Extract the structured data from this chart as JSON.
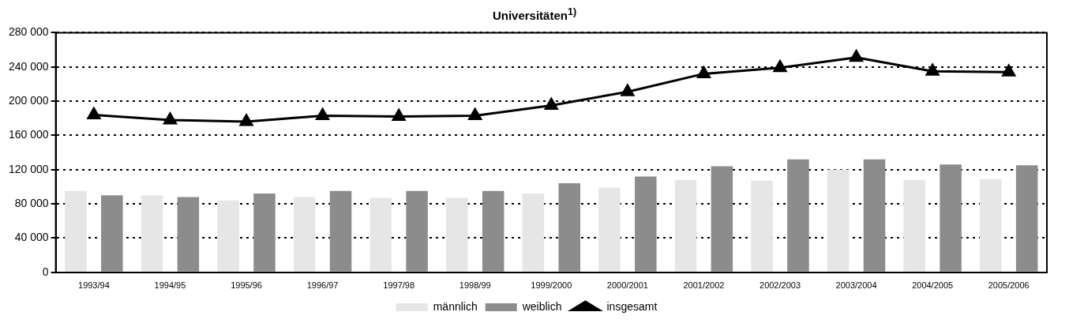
{
  "chart_data": {
    "type": "bar",
    "title": "Universitäten$^{1)}$",
    "categories": [
      "1993/94",
      "1994/95",
      "1995/96",
      "1996/97",
      "1997/98",
      "1998/99",
      "1999/2000",
      "2000/2001",
      "2001/2002",
      "2002/2003",
      "2003/2004",
      "2004/2005",
      "2005/2006"
    ],
    "series": [
      {
        "name": "männlich",
        "color": "#e6e6e6",
        "values": [
          95000,
          90000,
          84000,
          88000,
          87000,
          87000,
          92000,
          99000,
          108000,
          107000,
          120000,
          108000,
          109000
        ]
      },
      {
        "name": "weiblich",
        "color": "#8c8c8c",
        "values": [
          90000,
          88000,
          92000,
          95000,
          95000,
          95000,
          104000,
          112000,
          124000,
          132000,
          132000,
          126000,
          125000
        ]
      },
      {
        "name": "insgesamt",
        "type": "line",
        "color": "#000000",
        "marker": "triangle",
        "line_style": "solid",
        "values": [
          184000,
          178000,
          176000,
          183000,
          182000,
          183000,
          195000,
          211000,
          232000,
          239000,
          251000,
          235000,
          234000
        ]
      }
    ],
    "ylim": [
      0,
      280000
    ],
    "yticks": [
      0,
      {
        "value": 40000,
        "label": "40 000"
      },
      {
        "value": 80000,
        "label": "80 000"
      },
      {
        "value": 120000,
        "label": "120 000"
      },
      {
        "value": 160000,
        "label": "160 000"
      },
      {
        "value": 200000,
        "label": "200 000"
      },
      {
        "value": 240000,
        "label": "240 000"
      },
      {
        "value": 280000,
        "label": "280 000"
      }
    ],
    "grid": "y",
    "legend": "bottom"
  }
}
